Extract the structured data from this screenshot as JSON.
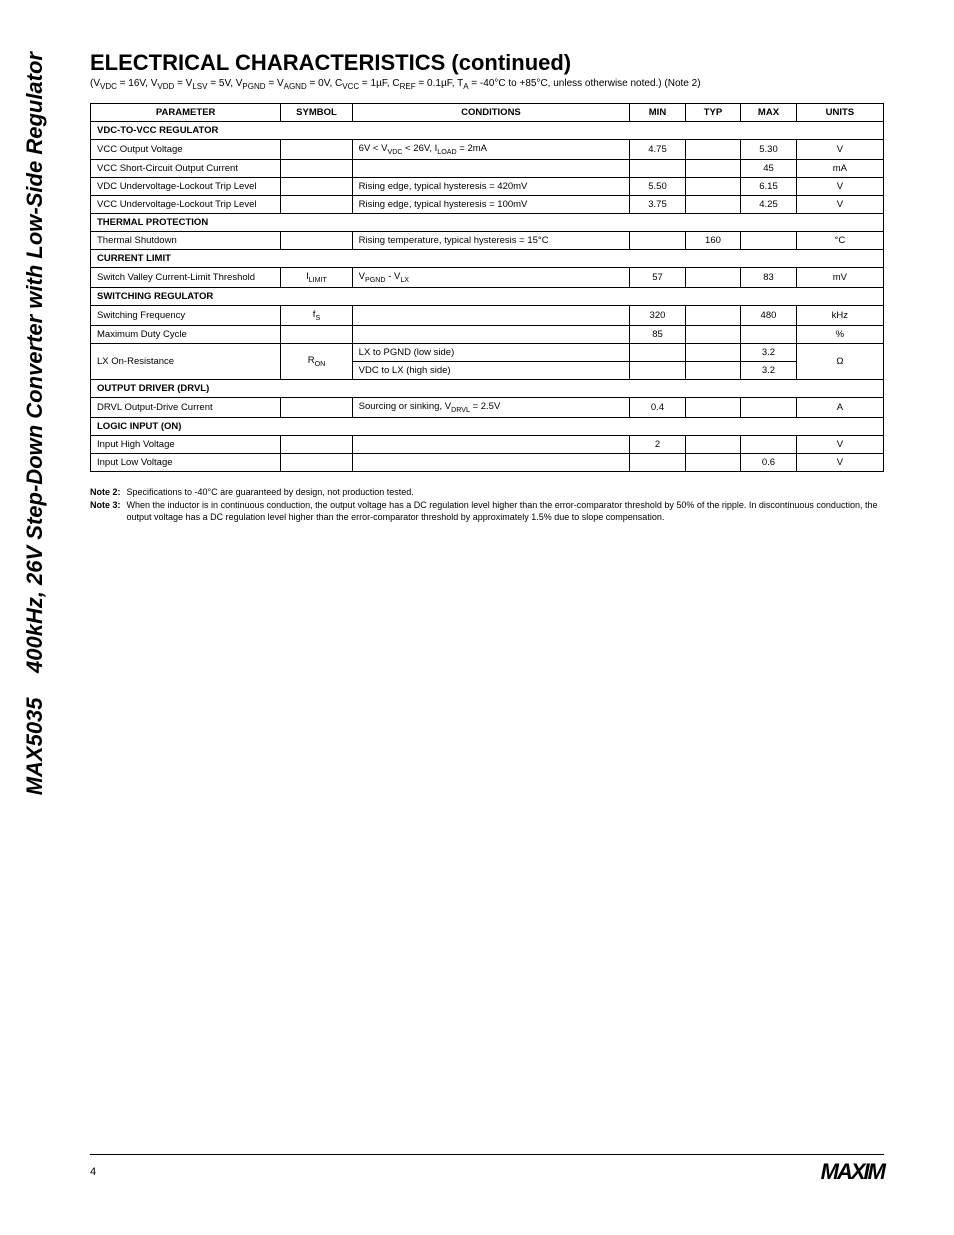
{
  "sidebar_title": "400kHz, 26V Step-Down Converter with Low-Side Regulator",
  "header": {
    "title": "ELECTRICAL CHARACTERISTICS (continued)",
    "conditions": "(VVDC = 16V, VVDD = VLSV = 5V, VPGND = VAGND = 0V, CVCC = 1µF, CREF = 0.1µF, TA = -40°C to +85°C, unless otherwise noted.) (Note 2)"
  },
  "table": {
    "col_widths": [
      "24%",
      "9%",
      "35%",
      "7%",
      "7%",
      "7%",
      "11%"
    ],
    "head": [
      "PARAMETER",
      "SYMBOL",
      "CONDITIONS",
      "MIN",
      "TYP",
      "MAX",
      "UNITS"
    ],
    "rows": [
      {
        "type": "section",
        "text": "VDC-TO-VCC REGULATOR"
      },
      {
        "type": "data",
        "cells": [
          "VCC Output Voltage",
          "",
          "6V < V<sub>VDC</sub> < 26V, I<sub>LOAD</sub> = 2mA",
          "4.75",
          "",
          "5.30",
          "V"
        ]
      },
      {
        "type": "data",
        "cells": [
          "VCC Short-Circuit Output Current",
          "",
          "",
          "",
          "",
          "45",
          "mA"
        ]
      },
      {
        "type": "data",
        "cells": [
          "VDC Undervoltage-Lockout Trip Level",
          "",
          "Rising edge, typical hysteresis = 420mV",
          "5.50",
          "",
          "6.15",
          "V"
        ]
      },
      {
        "type": "data",
        "cells": [
          "VCC Undervoltage-Lockout Trip Level",
          "",
          "Rising edge, typical hysteresis = 100mV",
          "3.75",
          "",
          "4.25",
          "V"
        ]
      },
      {
        "type": "section",
        "text": "THERMAL PROTECTION"
      },
      {
        "type": "data",
        "cells": [
          "Thermal Shutdown",
          "",
          "Rising temperature, typical hysteresis = 15°C",
          "",
          "160",
          "",
          "°C"
        ]
      },
      {
        "type": "section",
        "text": "CURRENT LIMIT"
      },
      {
        "type": "data",
        "cells": [
          "Switch Valley Current-Limit Threshold",
          "I<sub>LIMIT</sub>",
          "V<sub>PGND</sub> - V<sub>LX</sub>",
          "57",
          "",
          "83",
          "mV"
        ]
      },
      {
        "type": "section",
        "text": "SWITCHING REGULATOR"
      },
      {
        "type": "data",
        "cells": [
          "Switching Frequency",
          "f<sub>S</sub>",
          "",
          "320",
          "",
          "480",
          "kHz"
        ]
      },
      {
        "type": "data",
        "cells": [
          "Maximum Duty Cycle",
          "",
          "",
          "85",
          "",
          "",
          "%"
        ]
      },
      {
        "type": "data-double",
        "param": "LX On-Resistance",
        "symbol": "R<sub>ON</sub>",
        "sub": [
          {
            "cond": "LX to PGND (low side)",
            "min": "",
            "typ": "",
            "max": "3.2"
          },
          {
            "cond": "VDC to LX (high side)",
            "min": "",
            "typ": "",
            "max": "3.2"
          }
        ],
        "units": "Ω"
      },
      {
        "type": "section",
        "text": "OUTPUT DRIVER (DRVL)"
      },
      {
        "type": "data-multi",
        "cells": [
          "DRVL Output-Drive Current",
          "",
          "Sourcing or sinking, V<sub>DRVL</sub> = 2.5V",
          "0.4",
          "",
          "",
          "A"
        ]
      },
      {
        "type": "section",
        "text": "LOGIC INPUT (ON)"
      },
      {
        "type": "data",
        "cells": [
          "Input High Voltage",
          "",
          "",
          "2",
          "",
          "",
          "V"
        ]
      },
      {
        "type": "data",
        "cells": [
          "Input Low Voltage",
          "",
          "",
          "",
          "",
          "0.6",
          "V"
        ]
      }
    ]
  },
  "footnotes": [
    {
      "tag": "Note 2:",
      "text": "Specifications to -40°C are guaranteed by design, not production tested."
    },
    {
      "tag": "Note 3:",
      "text": "When the inductor is in continuous conduction, the output voltage has a DC regulation level higher than the error-comparator threshold by 50% of the ripple. In discontinuous conduction, the output voltage has a DC regulation level higher than the error-comparator threshold by approximately 1.5% due to slope compensation."
    }
  ],
  "footer": {
    "page": "4",
    "logo_text": "MAXIM"
  },
  "part_number": "MAX5035"
}
